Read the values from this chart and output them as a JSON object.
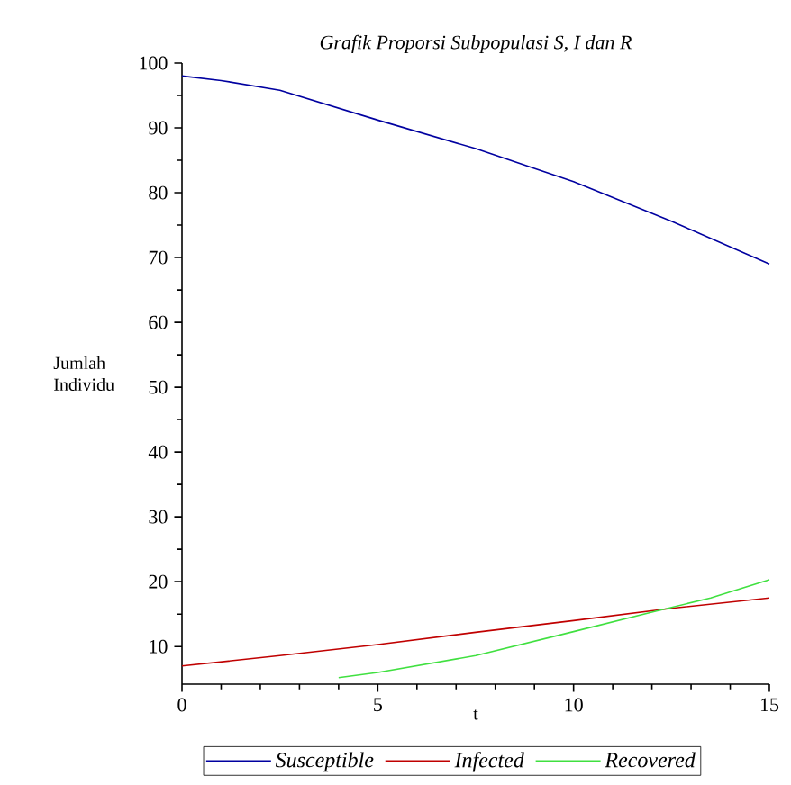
{
  "chart_data": {
    "type": "line",
    "title": "Grafik Proporsi Subpopulasi S, I dan R",
    "xlabel": "t",
    "ylabel": "Jumlah Individu",
    "xlim": [
      0,
      15
    ],
    "ylim": [
      4.2,
      100
    ],
    "xticks": [
      0,
      5,
      10,
      15
    ],
    "yticks": [
      10,
      20,
      30,
      40,
      50,
      60,
      70,
      80,
      90,
      100
    ],
    "legend": "bottom",
    "grid": false,
    "marker": "none",
    "line_style": "solid",
    "series": [
      {
        "name": "Susceptible",
        "color": "#0000a0",
        "x": [
          0,
          1,
          2.5,
          5,
          7.5,
          10,
          12.5,
          15
        ],
        "values": [
          98,
          97.3,
          95.8,
          91.2,
          86.8,
          81.7,
          75.6,
          69
        ]
      },
      {
        "name": "Infected",
        "color": "#c00000",
        "x": [
          0,
          2.5,
          5,
          7.5,
          10,
          12.5,
          15
        ],
        "values": [
          7,
          8.6,
          10.3,
          12.2,
          14,
          15.9,
          17.5
        ]
      },
      {
        "name": "Recovered",
        "color": "#40e040",
        "x": [
          4,
          5,
          7.5,
          10,
          12,
          13.5,
          15
        ],
        "values": [
          5.2,
          6,
          8.6,
          12.3,
          15.3,
          17.5,
          20.3
        ]
      }
    ]
  }
}
